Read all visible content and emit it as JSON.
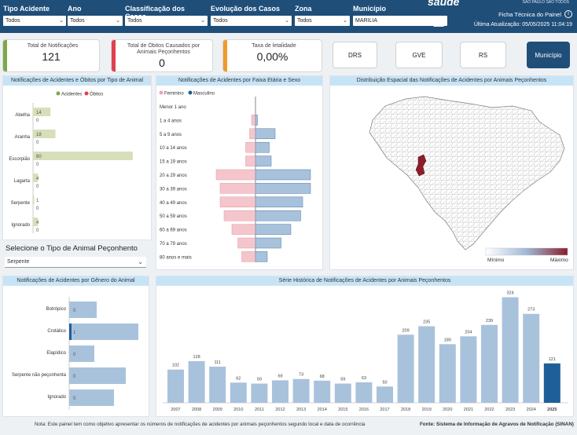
{
  "filters": [
    {
      "label": "Tipo Acidente",
      "value": "Todos"
    },
    {
      "label": "Ano",
      "value": "Todos"
    },
    {
      "label": "Classificação dos Casos",
      "value": "Todos"
    },
    {
      "label": "Evolução dos Casos",
      "value": "Todos"
    },
    {
      "label": "Zona",
      "value": "Todos"
    },
    {
      "label": "Município",
      "value": "MARILIA"
    }
  ],
  "brand": {
    "word": "saúde",
    "sub": "SÃO PAULO SÃO TODOS"
  },
  "header": {
    "ficha_label": "Ficha Técnica do Painel",
    "update_label": "Última Atualização: 05/05/2025 11:04:19"
  },
  "kpis": [
    {
      "title": "Total de Notificações",
      "value": "121",
      "color": "#7da84a"
    },
    {
      "title": "Total de Óbitos Causados por Animais Peçonhentos",
      "value": "0",
      "color": "#e0404e"
    },
    {
      "title": "Taxa de letalidade",
      "value": "0,00%",
      "color": "#f09a2a"
    }
  ],
  "nav": [
    {
      "label": "DRS",
      "active": false
    },
    {
      "label": "GVE",
      "active": false
    },
    {
      "label": "RS",
      "active": false
    },
    {
      "label": "Município",
      "active": true
    }
  ],
  "panels": {
    "animal": "Notificações de Acidentes e Óbitos por Tipo de Animal",
    "age": "Notificações de Acidentes por Faixa Etária e Sexo",
    "map": "Distribuição Espacial das Notificações de Acidentes por Animais Peçonhentos",
    "genus": "Notificações de Acidentes por Gênero do Animal",
    "series": "Série Histórica de Notificações de Acidentes por Animais Peçonhentos"
  },
  "animal_selector": {
    "label": "Selecione o Tipo de Animal Peçonhento",
    "value": "Serpente"
  },
  "map_legend": {
    "min": "Mínimo",
    "max": "Máximo"
  },
  "footer": {
    "note": "Nota: Este painel tem como objetivo apresentar os números de notificações de acidentes por animais peçonhentos segundo local e data de ocorrência",
    "source": "Fonte: Sistema de Informação de Agravos de Notificação (SINAN)"
  },
  "chart_data": [
    {
      "type": "bar",
      "legend": [
        "Acidentes",
        "Óbitos"
      ],
      "legend_position": "top",
      "colors": {
        "Acidentes": "#d6dfb9",
        "Óbitos": "#e0404e"
      },
      "categories": [
        "Abelha",
        "Aranha",
        "Escorpião",
        "Lagarta",
        "Serpente",
        "Ignorado"
      ],
      "series": [
        {
          "name": "Acidentes",
          "values": [
            14,
            18,
            80,
            4,
            1,
            4
          ]
        },
        {
          "name": "Óbitos",
          "values": [
            0,
            0,
            0,
            0,
            0,
            0
          ]
        }
      ]
    },
    {
      "type": "bar",
      "legend": [
        "Feminino",
        "Masculino"
      ],
      "legend_position": "top-left",
      "colors": {
        "Feminino": "#f4c6cc",
        "Masculino": "#a9c2dc"
      },
      "categories": [
        "Menor 1 ano",
        "1 a 4 anos",
        "5 a 9 anos",
        "10 a 14 anos",
        "15 a 19 anos",
        "20 a 29 anos",
        "30 a 39 anos",
        "40 a 49 anos",
        "50 a 59 anos",
        "60 a 69 anos",
        "70 a 79 anos",
        "80 anos e mais"
      ],
      "series": [
        {
          "name": "Feminino",
          "values": [
            0,
            1,
            1.5,
            2.5,
            2.5,
            10,
            9,
            9,
            8,
            6,
            4.5,
            3.5
          ]
        },
        {
          "name": "Masculino",
          "values": [
            0,
            0.5,
            5,
            3.5,
            4,
            14,
            14,
            12,
            11.5,
            9,
            6.5,
            3
          ]
        }
      ]
    },
    {
      "type": "bar",
      "categories": [
        "Botrópico",
        "Crotálico",
        "Elapídico",
        "Serpente não peçonhenta",
        "Ignorado"
      ],
      "values_shown": [
        "0",
        "1",
        "0",
        "0",
        "0"
      ],
      "bar_color": "#a9c2dc"
    },
    {
      "type": "bar",
      "categories": [
        "2007",
        "2008",
        "2009",
        "2010",
        "2011",
        "2012",
        "2013",
        "2014",
        "2015",
        "2016",
        "2017",
        "2018",
        "2019",
        "2020",
        "2021",
        "2022",
        "2023",
        "2024",
        "2025"
      ],
      "values": [
        102,
        128,
        111,
        62,
        59,
        69,
        73,
        68,
        59,
        63,
        50,
        209,
        235,
        180,
        204,
        239,
        324,
        273,
        121
      ],
      "highlight": "2025",
      "colors": {
        "default": "#a9c2dc",
        "highlight": "#1f5f99"
      },
      "ylim": [
        0,
        340
      ]
    }
  ]
}
